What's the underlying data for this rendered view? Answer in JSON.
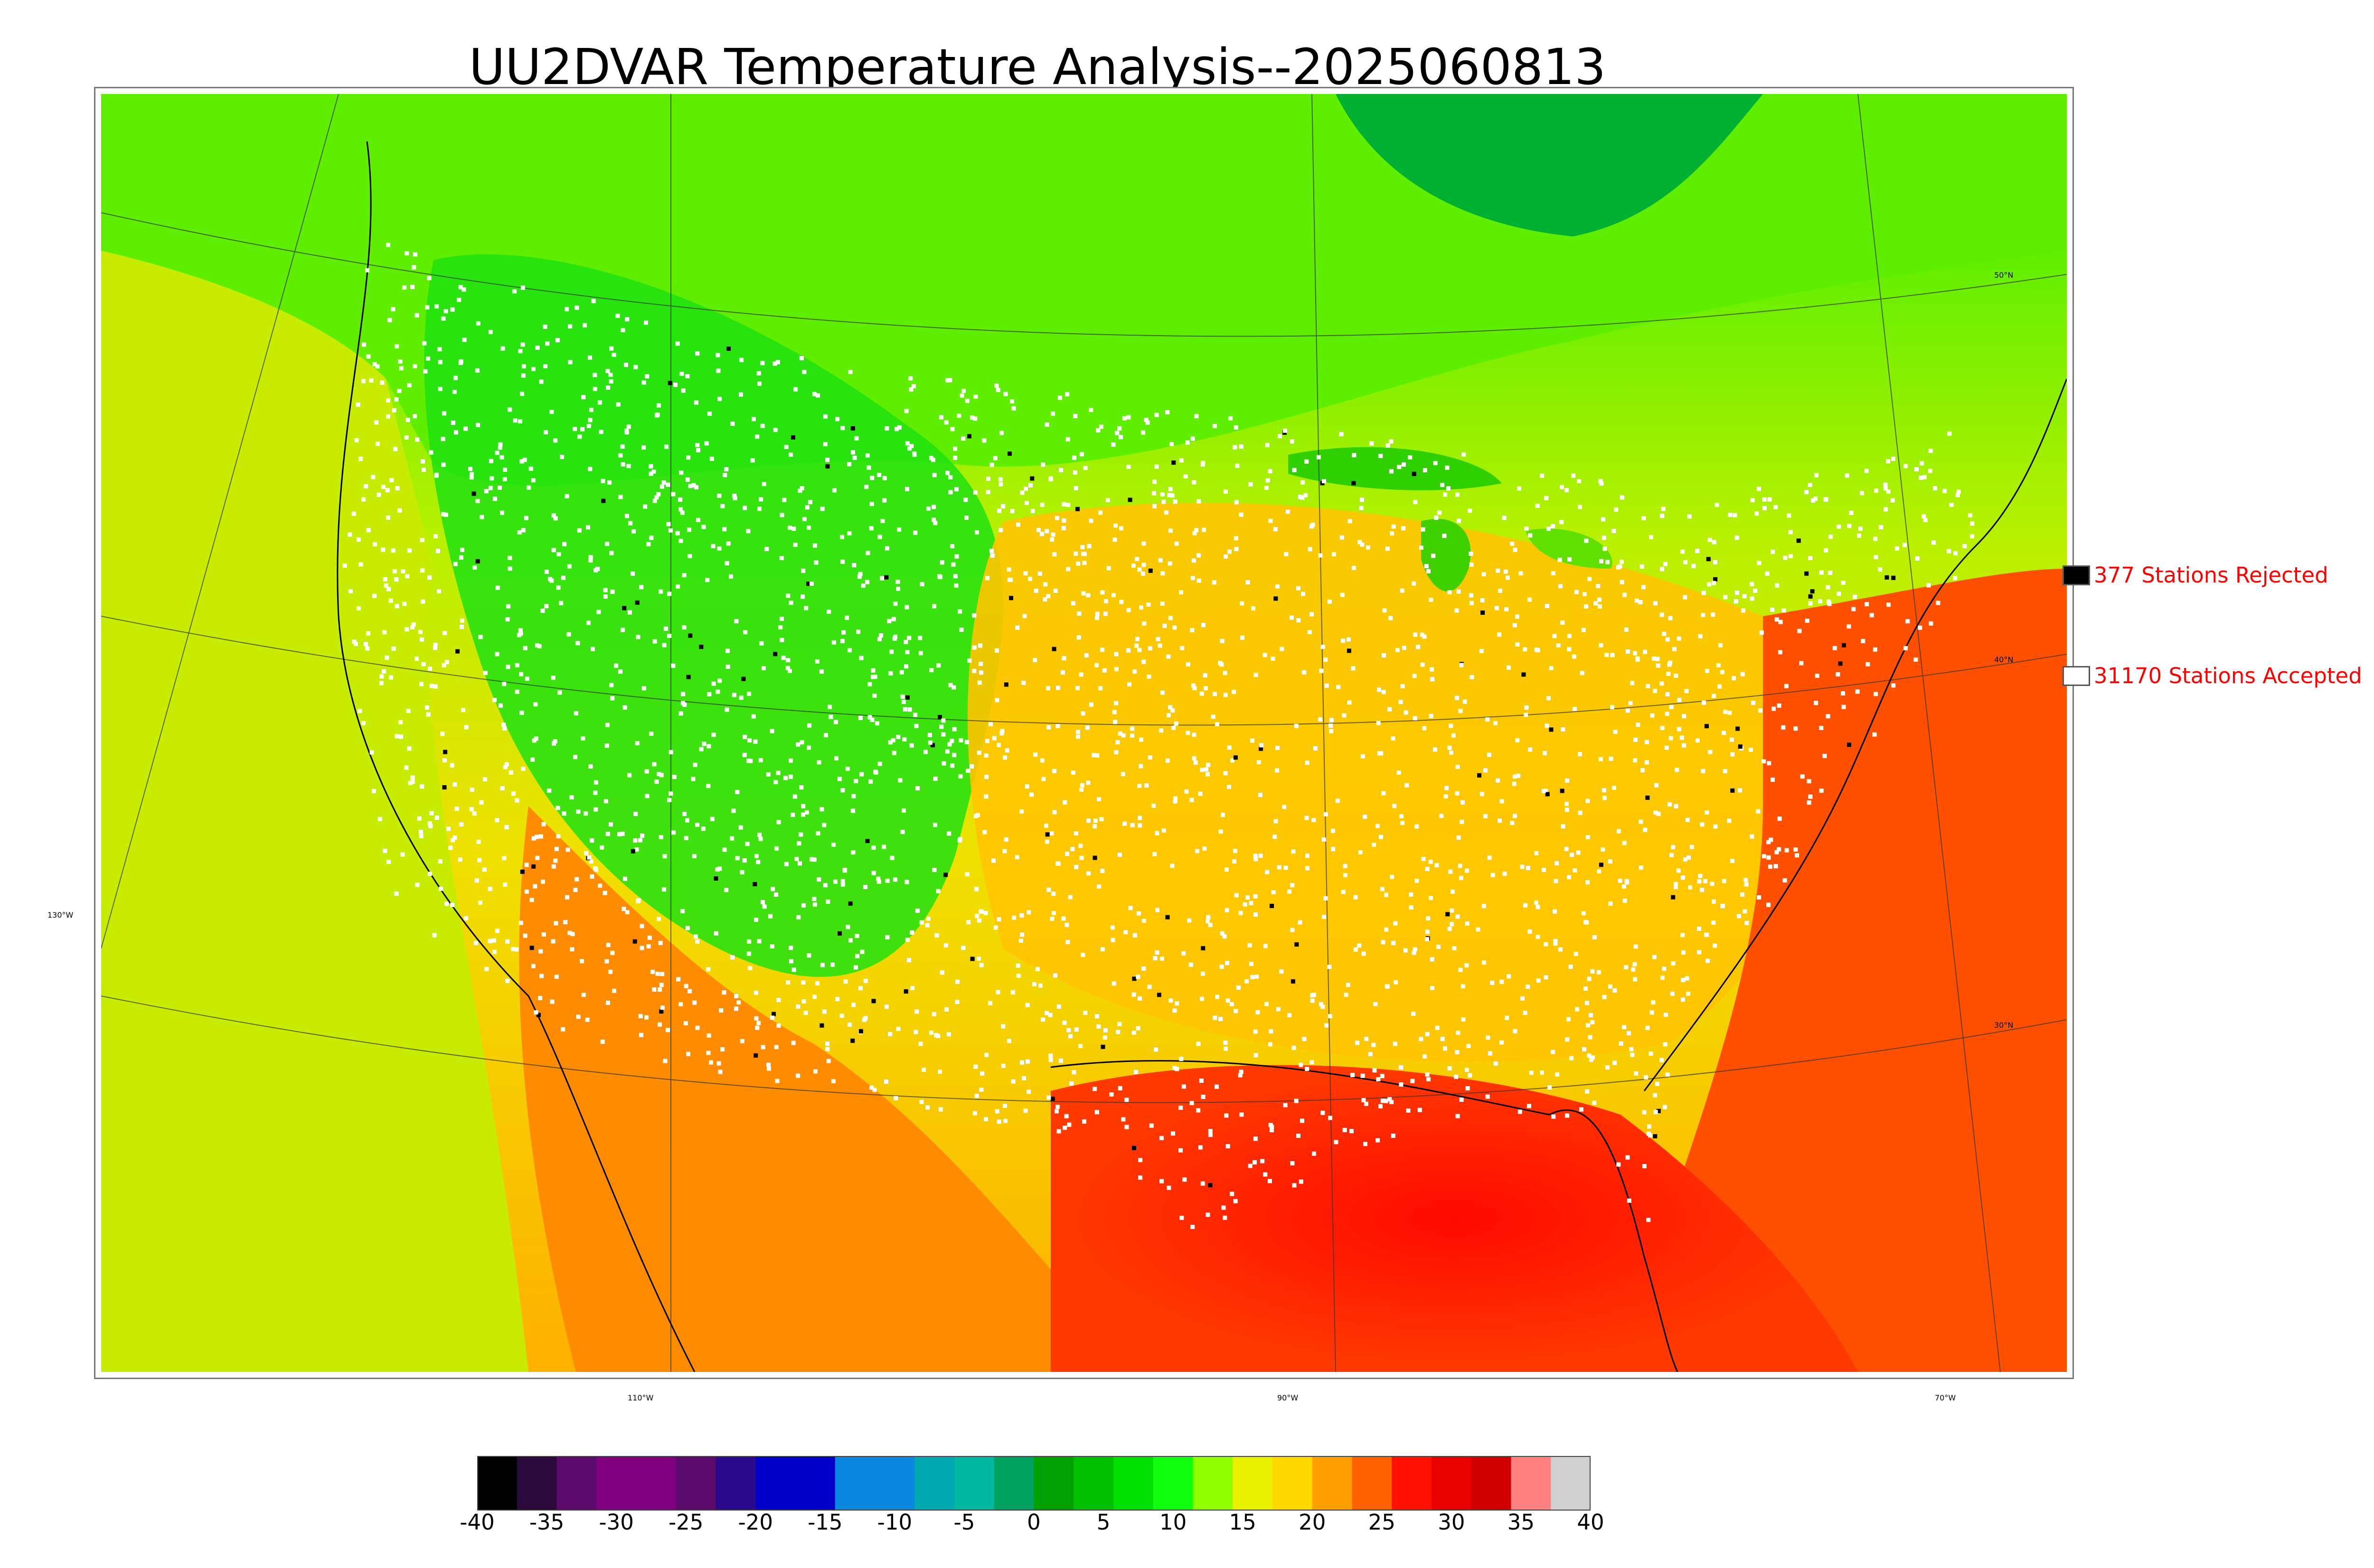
{
  "title": "UU2DVAR Temperature Analysis--2025060813",
  "longitude_labels": [
    "110°W",
    "90°W",
    "70°W"
  ],
  "latitude_labels": [
    "50°N",
    "40°N",
    "30°N"
  ],
  "west_label": "130°W",
  "legend": {
    "rejected": {
      "label": "377 Stations Rejected",
      "box_color": "#000000"
    },
    "accepted": {
      "label": "31170 Stations Accepted",
      "box_color": "#ffffff"
    }
  },
  "colorbar": {
    "ticks": [
      "-40",
      "-35",
      "-30",
      "-25",
      "-20",
      "-15",
      "-10",
      "-5",
      "0",
      "5",
      "10",
      "15",
      "20",
      "25",
      "30",
      "35",
      "40"
    ],
    "colors": [
      "#000000",
      "#2a0a3a",
      "#5a0a6a",
      "#800080",
      "#800080",
      "#5a0a6a",
      "#2a0a8a",
      "#0000c8",
      "#0000c8",
      "#0a88e0",
      "#0a88e0",
      "#00a8b0",
      "#00b8a0",
      "#00a060",
      "#00a000",
      "#00c000",
      "#00e000",
      "#10ff10",
      "#90ff00",
      "#e8f000",
      "#ffd800",
      "#ffa000",
      "#ff6000",
      "#ff1000",
      "#e80000",
      "#d00000",
      "#ff8080",
      "#d0d0d0"
    ]
  },
  "regions": {
    "west_north": "#00e600",
    "west_coast_ocean": "#c8ec00",
    "gulf": "#ff1a00",
    "atlantic": "#ff5a00",
    "canada_north": "#40ee00",
    "hudson_bay": "#00aa20",
    "plains": "#ffd000",
    "south": "#ff9000"
  }
}
